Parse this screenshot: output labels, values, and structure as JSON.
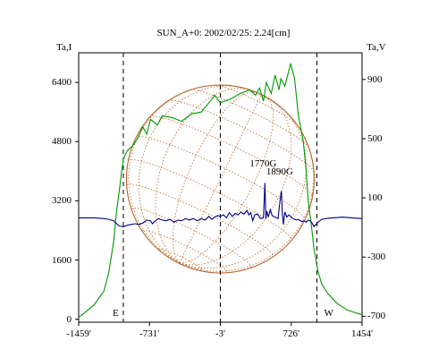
{
  "chart_data": {
    "type": "line",
    "title": "SUN_A+0: 2002/02/25: 2.24[cm]",
    "left_axis_label": "Ta,I",
    "right_axis_label": "Ta,V",
    "x_ticks": [
      "-1459'",
      "-731'",
      "-3'",
      "726'",
      "1454'"
    ],
    "x_tick_values": [
      -1459,
      -731,
      -3,
      726,
      1454
    ],
    "xlim": [
      -1459,
      1454
    ],
    "y_left_ticks": [
      0,
      1600,
      3200,
      4800,
      6400
    ],
    "ylim_left": [
      -80,
      7200
    ],
    "y_right_ticks": [
      900,
      500,
      100,
      -300,
      -700
    ],
    "ylim_right": [
      -740,
      1080
    ],
    "limb_markers": [
      {
        "label": "E",
        "x": -1000
      },
      {
        "label": "W",
        "x": 990
      }
    ],
    "center_marker_x": -3,
    "grid": false,
    "overlay": "solar disk with heliographic grid",
    "annotations": [
      {
        "label": "1770G",
        "x": 465,
        "v": 200
      },
      {
        "label": "1890G",
        "x": 635,
        "v": 145
      }
    ],
    "series": [
      {
        "axis": "left",
        "color": "#009900",
        "x": [
          -1459,
          -1400,
          -1300,
          -1200,
          -1150,
          -1100,
          -1070,
          -1040,
          -1020,
          -1000,
          -980,
          -960,
          -940,
          -900,
          -850,
          -800,
          -760,
          -720,
          -650,
          -600,
          -500,
          -400,
          -300,
          -200,
          -120,
          -60,
          -3,
          100,
          200,
          300,
          360,
          400,
          440,
          470,
          520,
          560,
          600,
          620,
          660,
          700,
          720,
          760,
          800,
          850,
          880,
          900,
          930,
          960,
          1000,
          1040,
          1100,
          1200,
          1300,
          1454
        ],
        "y": [
          50,
          170,
          390,
          760,
          1250,
          2100,
          2900,
          3500,
          3950,
          4300,
          4450,
          4550,
          4600,
          4700,
          4900,
          5200,
          5000,
          5400,
          5250,
          5500,
          5450,
          5350,
          5550,
          5600,
          5850,
          6050,
          5850,
          5950,
          6100,
          6200,
          6050,
          6250,
          5900,
          6400,
          6100,
          6600,
          6200,
          6500,
          6300,
          6700,
          6900,
          6500,
          5500,
          4800,
          4000,
          3200,
          2600,
          1900,
          1300,
          950,
          700,
          420,
          250,
          120
        ]
      },
      {
        "axis": "right",
        "color": "#000080",
        "x": [
          -1459,
          -1300,
          -1200,
          -1150,
          -1100,
          -1060,
          -1040,
          -1000,
          -960,
          -920,
          -880,
          -840,
          -800,
          -760,
          -720,
          -700,
          -680,
          -640,
          -600,
          -560,
          -520,
          -480,
          -440,
          -400,
          -360,
          -320,
          -280,
          -240,
          -200,
          -160,
          -120,
          -90,
          -60,
          -30,
          -3,
          30,
          60,
          90,
          120,
          150,
          180,
          210,
          240,
          270,
          290,
          310,
          330,
          350,
          380,
          410,
          440,
          455,
          465,
          475,
          490,
          510,
          530,
          560,
          590,
          610,
          625,
          635,
          645,
          660,
          680,
          700,
          720,
          740,
          760,
          780,
          800,
          820,
          840,
          860,
          880,
          900,
          920,
          940,
          960,
          980,
          1000,
          1040,
          1080,
          1150,
          1250,
          1350,
          1454
        ],
        "y": [
          -35,
          -35,
          -40,
          -45,
          -55,
          -80,
          -90,
          -95,
          -85,
          -80,
          -75,
          -80,
          -70,
          -50,
          -55,
          -75,
          -60,
          -40,
          -50,
          -55,
          -45,
          -65,
          -50,
          -55,
          -40,
          -50,
          -40,
          -55,
          -40,
          -50,
          -25,
          -45,
          -30,
          -20,
          -25,
          -15,
          -35,
          0,
          -25,
          -5,
          -15,
          5,
          -10,
          15,
          -15,
          0,
          -55,
          -15,
          -10,
          -40,
          -35,
          200,
          -40,
          10,
          -30,
          20,
          -20,
          -30,
          -40,
          80,
          145,
          -10,
          -80,
          5,
          -30,
          -15,
          -25,
          -40,
          -45,
          -50,
          -45,
          -55,
          -60,
          -55,
          -65,
          -50,
          -55,
          -70,
          -95,
          -80,
          -65,
          -45,
          -40,
          -35,
          -30,
          -35,
          -40
        ]
      }
    ]
  }
}
